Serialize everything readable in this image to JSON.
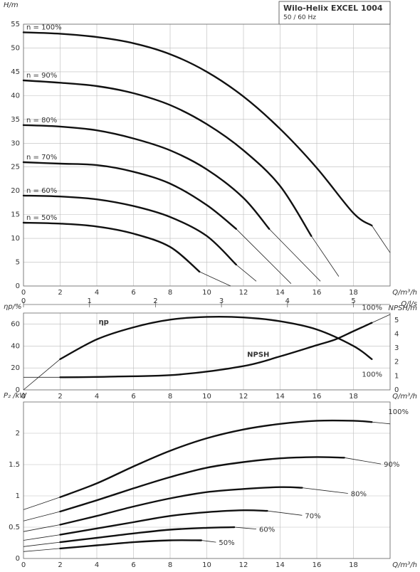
{
  "header": {
    "title": "Wilo-Helix EXCEL 1004",
    "subtitle": "50 / 60 Hz"
  },
  "chart_data": [
    {
      "type": "line",
      "panel": "head",
      "ylabel": "H/m",
      "xlabel": "Q/m³/h",
      "secondary_xlabel": "Q/l/s",
      "xlim": [
        0,
        20
      ],
      "ylim": [
        0,
        55
      ],
      "xticks": [
        0,
        2,
        4,
        6,
        8,
        10,
        12,
        14,
        16,
        18
      ],
      "yticks": [
        0,
        5,
        10,
        15,
        20,
        25,
        30,
        35,
        40,
        45,
        50,
        55
      ],
      "secondary_xticks": [
        0,
        1,
        2,
        3,
        4,
        5
      ],
      "grid": true,
      "series": [
        {
          "name": "n = 100%",
          "x": [
            0,
            2,
            4,
            6,
            8,
            10,
            12,
            14,
            16,
            18,
            19
          ],
          "y": [
            53.3,
            53.0,
            52.3,
            51.0,
            48.7,
            45.0,
            39.8,
            33.0,
            24.8,
            15.3,
            12.7
          ],
          "tail_x": [
            19,
            20
          ],
          "tail_y": [
            12.7,
            7.0
          ]
        },
        {
          "name": "n = 90%",
          "x": [
            0,
            2,
            4,
            6,
            8,
            10,
            12,
            14,
            15.7
          ],
          "y": [
            43.2,
            42.7,
            42.0,
            40.5,
            38.0,
            34.0,
            28.5,
            21.0,
            10.5
          ],
          "tail_x": [
            15.7,
            17.2
          ],
          "tail_y": [
            10.5,
            2.0
          ]
        },
        {
          "name": "n = 80%",
          "x": [
            0,
            2,
            4,
            6,
            8,
            10,
            12,
            13.4
          ],
          "y": [
            33.8,
            33.5,
            32.7,
            31.0,
            28.5,
            24.5,
            18.5,
            12.0
          ],
          "tail_x": [
            13.4,
            16.2
          ],
          "tail_y": [
            12.0,
            1.0
          ]
        },
        {
          "name": "n = 70%",
          "x": [
            0,
            2,
            4,
            6,
            8,
            10,
            11.6
          ],
          "y": [
            26.0,
            25.7,
            25.4,
            24.0,
            21.5,
            17.0,
            12.0
          ],
          "tail_x": [
            11.6,
            14.6
          ],
          "tail_y": [
            12.0,
            0.5
          ]
        },
        {
          "name": "n = 60%",
          "x": [
            0,
            2,
            4,
            6,
            8,
            10,
            11.6
          ],
          "y": [
            19.0,
            18.8,
            18.2,
            16.8,
            14.5,
            10.5,
            4.5
          ],
          "tail_x": [
            11.6,
            12.7
          ],
          "tail_y": [
            4.5,
            1.0
          ]
        },
        {
          "name": "n = 50%",
          "x": [
            0,
            2,
            4,
            6,
            8,
            9.6
          ],
          "y": [
            13.3,
            13.1,
            12.5,
            11.0,
            8.2,
            3.0
          ],
          "tail_x": [
            9.6,
            11.3
          ],
          "tail_y": [
            3.0,
            0
          ]
        }
      ]
    },
    {
      "type": "line",
      "panel": "efficiency-npsh",
      "ylabel": "ηp/%",
      "secondary_ylabel": "NPSH/m",
      "xlabel": "Q/m³/h",
      "xlim": [
        0,
        20
      ],
      "ylim": [
        0,
        70
      ],
      "secondary_ylim": [
        0,
        5.5
      ],
      "xticks": [
        0,
        2,
        4,
        6,
        8,
        10,
        12,
        14,
        16,
        18
      ],
      "yticks": [
        0,
        20,
        40,
        60
      ],
      "secondary_yticks": [
        0,
        1,
        2,
        3,
        4,
        5
      ],
      "grid": true,
      "series": [
        {
          "name": "ηp",
          "axis": "left",
          "x": [
            2,
            4,
            6,
            8,
            10,
            12,
            14,
            16,
            18,
            19
          ],
          "y": [
            28.0,
            46.0,
            57.0,
            64.0,
            66.5,
            66.0,
            62.5,
            55.0,
            40.0,
            28.0
          ],
          "tail_x": [
            0,
            2
          ],
          "tail_y": [
            0,
            28.0
          ],
          "end_label": "100%"
        },
        {
          "name": "NPSH",
          "axis": "right",
          "x": [
            2,
            5,
            8.5,
            12,
            14,
            16,
            17,
            18,
            19
          ],
          "y": [
            0.9,
            0.95,
            1.1,
            1.7,
            2.4,
            3.2,
            3.6,
            4.2,
            4.8
          ],
          "tail_x": [
            0,
            2,
            19,
            20
          ],
          "tail_y": [
            0.9,
            0.9,
            4.8,
            5.4
          ],
          "end_label": "100%"
        }
      ]
    },
    {
      "type": "line",
      "panel": "power",
      "ylabel": "P₂ /kW",
      "xlabel": "Q/m³/h",
      "xlim": [
        0,
        20
      ],
      "ylim": [
        0,
        2.5
      ],
      "xticks": [
        0,
        2,
        4,
        6,
        8,
        10,
        12,
        14,
        16,
        18
      ],
      "yticks": [
        0,
        0.5,
        1.0,
        1.5,
        2.0
      ],
      "grid": true,
      "series": [
        {
          "name": "100%",
          "x": [
            2,
            4,
            6,
            8,
            10,
            12,
            14,
            16,
            18,
            19
          ],
          "y": [
            0.98,
            1.2,
            1.47,
            1.72,
            1.92,
            2.06,
            2.15,
            2.2,
            2.2,
            2.18
          ],
          "tail_x": [
            0,
            2,
            19,
            20
          ],
          "tail_y": [
            0.78,
            0.98,
            2.18,
            2.15
          ]
        },
        {
          "name": "90%",
          "x": [
            2,
            4,
            6,
            8,
            10,
            12,
            14,
            16,
            17.5
          ],
          "y": [
            0.75,
            0.93,
            1.12,
            1.3,
            1.45,
            1.54,
            1.6,
            1.62,
            1.61
          ],
          "tail_x": [
            0,
            2,
            17.5,
            19.5
          ],
          "tail_y": [
            0.6,
            0.75,
            1.61,
            1.51
          ]
        },
        {
          "name": "80%",
          "x": [
            2,
            4,
            6,
            8,
            10,
            12,
            14,
            15.2
          ],
          "y": [
            0.54,
            0.68,
            0.83,
            0.96,
            1.06,
            1.11,
            1.14,
            1.13
          ],
          "tail_x": [
            0,
            2,
            15.2,
            17.7
          ],
          "tail_y": [
            0.43,
            0.54,
            1.13,
            1.04
          ]
        },
        {
          "name": "70%",
          "x": [
            2,
            4,
            6,
            8,
            10,
            12,
            13.3
          ],
          "y": [
            0.38,
            0.48,
            0.58,
            0.68,
            0.74,
            0.77,
            0.76
          ],
          "tail_x": [
            0,
            2,
            13.3,
            15.2
          ],
          "tail_y": [
            0.29,
            0.38,
            0.76,
            0.69
          ]
        },
        {
          "name": "60%",
          "x": [
            2,
            4,
            6,
            8,
            10,
            11.5
          ],
          "y": [
            0.26,
            0.33,
            0.4,
            0.46,
            0.49,
            0.5
          ],
          "tail_x": [
            0,
            2,
            11.5,
            12.7
          ],
          "tail_y": [
            0.19,
            0.26,
            0.5,
            0.47
          ]
        },
        {
          "name": "50%",
          "x": [
            2,
            4,
            6,
            8,
            9.7
          ],
          "y": [
            0.16,
            0.21,
            0.26,
            0.29,
            0.29
          ],
          "tail_x": [
            0,
            2,
            9.7,
            10.5
          ],
          "tail_y": [
            0.11,
            0.16,
            0.29,
            0.26
          ]
        }
      ]
    }
  ]
}
